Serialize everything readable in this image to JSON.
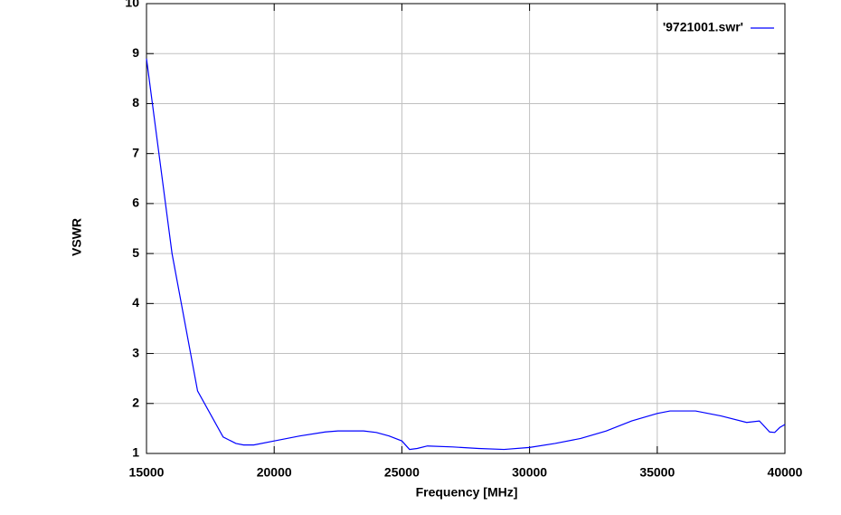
{
  "chart_data": {
    "type": "line",
    "xlabel": "Frequency [MHz]",
    "ylabel": "VSWR",
    "x": [
      15000,
      16000,
      17000,
      18000,
      18500,
      18800,
      19200,
      20000,
      21000,
      22000,
      22500,
      23500,
      24000,
      24500,
      25000,
      25300,
      25600,
      26000,
      27000,
      28000,
      29000,
      30000,
      31000,
      32000,
      33000,
      34000,
      35000,
      35500,
      36500,
      37500,
      38500,
      39000,
      39400,
      39600,
      39800,
      40000
    ],
    "series": [
      {
        "name": "'9721001.swr'",
        "color": "#0000ff",
        "values": [
          8.9,
          5.0,
          2.25,
          1.33,
          1.2,
          1.17,
          1.17,
          1.25,
          1.35,
          1.43,
          1.45,
          1.45,
          1.42,
          1.35,
          1.25,
          1.08,
          1.1,
          1.15,
          1.13,
          1.1,
          1.08,
          1.12,
          1.2,
          1.3,
          1.45,
          1.65,
          1.8,
          1.85,
          1.85,
          1.75,
          1.62,
          1.65,
          1.43,
          1.42,
          1.52,
          1.58
        ]
      }
    ],
    "xlim": [
      15000,
      40000
    ],
    "xticks": [
      15000,
      20000,
      25000,
      30000,
      35000,
      40000
    ],
    "ylim": [
      1,
      10
    ],
    "yticks": [
      1,
      2,
      3,
      4,
      5,
      6,
      7,
      8,
      9,
      10
    ],
    "grid": true,
    "legend": "top-right"
  }
}
